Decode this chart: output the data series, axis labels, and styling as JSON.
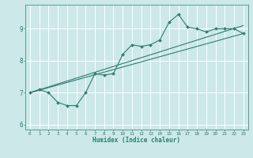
{
  "xlabel": "Humidex (Indice chaleur)",
  "bg_color": "#cce8e8",
  "grid_color": "#ffffff",
  "line_color": "#2e7d6e",
  "xlim": [
    -0.5,
    23.5
  ],
  "ylim": [
    5.85,
    9.75
  ],
  "xticks": [
    0,
    1,
    2,
    3,
    4,
    5,
    6,
    7,
    8,
    9,
    10,
    11,
    12,
    13,
    14,
    15,
    16,
    17,
    18,
    19,
    20,
    21,
    22,
    23
  ],
  "yticks": [
    6,
    7,
    8,
    9
  ],
  "main_line_x": [
    0,
    1,
    2,
    3,
    4,
    5,
    6,
    7,
    8,
    9,
    10,
    11,
    12,
    13,
    14,
    15,
    16,
    17,
    18,
    19,
    20,
    21,
    22,
    23
  ],
  "main_line_y": [
    7.0,
    7.1,
    7.0,
    6.7,
    6.6,
    6.6,
    7.0,
    7.6,
    7.55,
    7.6,
    8.2,
    8.5,
    8.45,
    8.5,
    8.65,
    9.2,
    9.45,
    9.05,
    9.0,
    8.9,
    9.0,
    9.0,
    9.0,
    8.85
  ],
  "reg_line1_x": [
    0,
    23
  ],
  "reg_line1_y": [
    7.0,
    8.85
  ],
  "reg_line2_x": [
    0,
    23
  ],
  "reg_line2_y": [
    7.0,
    9.1
  ]
}
